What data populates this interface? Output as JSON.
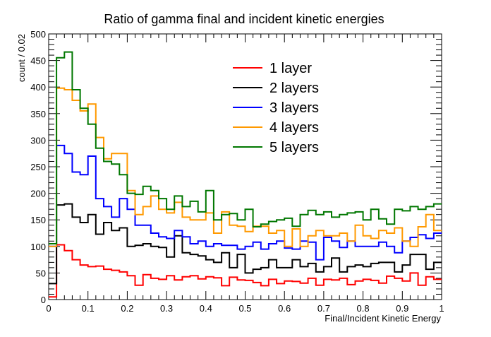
{
  "chart_data": {
    "type": "line",
    "title": "Ratio of gamma final and incident kinetic energies",
    "xlabel": "Final/Incident Kinetic Energy",
    "ylabel": "count / 0.02",
    "xlim": [
      0,
      1
    ],
    "ylim": [
      0,
      500
    ],
    "bin_width": 0.02,
    "bin_low_edges": [
      0,
      0.02,
      0.04,
      0.06,
      0.08,
      0.1,
      0.12,
      0.14,
      0.16,
      0.18,
      0.2,
      0.22,
      0.24,
      0.26,
      0.28,
      0.3,
      0.32,
      0.34,
      0.36,
      0.38,
      0.4,
      0.42,
      0.44,
      0.46,
      0.48,
      0.5,
      0.52,
      0.54,
      0.56,
      0.58,
      0.6,
      0.62,
      0.64,
      0.66,
      0.68,
      0.7,
      0.72,
      0.74,
      0.76,
      0.78,
      0.8,
      0.82,
      0.84,
      0.86,
      0.88,
      0.9,
      0.92,
      0.94,
      0.96,
      0.98
    ],
    "x_ticks": [
      "0",
      "0.1",
      "0.2",
      "0.3",
      "0.4",
      "0.5",
      "0.6",
      "0.7",
      "0.8",
      "0.9",
      "1"
    ],
    "y_ticks": [
      "0",
      "50",
      "100",
      "150",
      "200",
      "250",
      "300",
      "350",
      "400",
      "450",
      "500"
    ],
    "legend_position": "top-center",
    "grid": false,
    "series": [
      {
        "name": "1 layer",
        "color": "#ff0000",
        "values": [
          5,
          103,
          92,
          75,
          65,
          62,
          63,
          57,
          55,
          52,
          45,
          27,
          47,
          40,
          38,
          45,
          37,
          43,
          45,
          39,
          43,
          41,
          26,
          42,
          37,
          36,
          32,
          26,
          38,
          30,
          35,
          34,
          31,
          40,
          27,
          38,
          37,
          40,
          28,
          35,
          38,
          36,
          31,
          44,
          40,
          35,
          50,
          27,
          43,
          38
        ]
      },
      {
        "name": "2 layers",
        "color": "#000000",
        "values": [
          30,
          178,
          180,
          155,
          145,
          160,
          123,
          145,
          130,
          135,
          100,
          102,
          105,
          100,
          98,
          80,
          120,
          88,
          85,
          82,
          75,
          70,
          88,
          60,
          85,
          50,
          57,
          60,
          75,
          60,
          60,
          75,
          62,
          68,
          52,
          62,
          78,
          52,
          62,
          65,
          62,
          68,
          70,
          70,
          52,
          65,
          85,
          85,
          57,
          70
        ]
      },
      {
        "name": "3 layers",
        "color": "#0000ff",
        "values": [
          100,
          290,
          275,
          240,
          235,
          270,
          190,
          175,
          155,
          190,
          170,
          140,
          140,
          125,
          118,
          115,
          130,
          118,
          105,
          110,
          100,
          105,
          102,
          102,
          95,
          100,
          108,
          95,
          105,
          110,
          97,
          95,
          110,
          108,
          75,
          117,
          110,
          98,
          110,
          100,
          100,
          100,
          108,
          100,
          88,
          110,
          117,
          122,
          115,
          125
        ]
      },
      {
        "name": "4 layers",
        "color": "#ff9900",
        "values": [
          100,
          398,
          395,
          375,
          355,
          368,
          305,
          265,
          275,
          275,
          205,
          160,
          175,
          195,
          170,
          163,
          183,
          155,
          150,
          150,
          163,
          125,
          165,
          140,
          138,
          128,
          138,
          138,
          125,
          130,
          100,
          133,
          100,
          120,
          130,
          120,
          120,
          125,
          110,
          140,
          120,
          115,
          130,
          125,
          135,
          110,
          100,
          137,
          160,
          130
        ]
      },
      {
        "name": "5 layers",
        "color": "#007700",
        "values": [
          105,
          455,
          466,
          395,
          360,
          330,
          285,
          260,
          255,
          235,
          200,
          198,
          213,
          205,
          190,
          170,
          195,
          175,
          185,
          165,
          205,
          150,
          160,
          162,
          150,
          170,
          137,
          142,
          147,
          150,
          153,
          138,
          160,
          168,
          160,
          165,
          155,
          160,
          163,
          165,
          150,
          170,
          152,
          142,
          170,
          167,
          175,
          170,
          175,
          180
        ]
      }
    ]
  }
}
